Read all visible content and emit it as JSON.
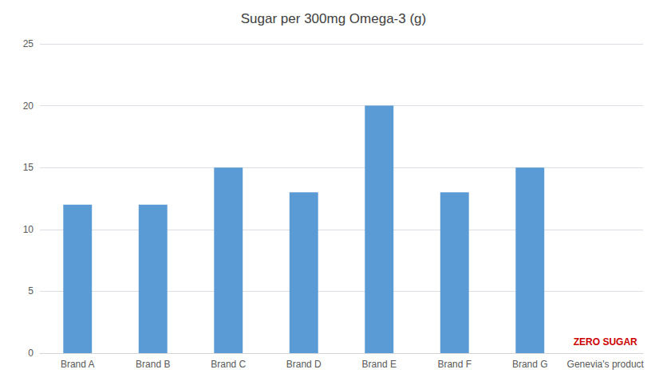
{
  "chart_data": {
    "type": "bar",
    "title": "Sugar per 300mg Omega-3 (g)",
    "categories": [
      "Brand A",
      "Brand B",
      "Brand C",
      "Brand D",
      "Brand E",
      "Brand F",
      "Brand G",
      "Genevia's product"
    ],
    "values": [
      12,
      12,
      15,
      13,
      20,
      13,
      15,
      0
    ],
    "color": "#5b9bd5",
    "ylim": [
      0,
      25
    ],
    "yticks": [
      0,
      5,
      10,
      15,
      20,
      25
    ],
    "grid": true,
    "annotations": [
      {
        "text": "ZERO SUGAR",
        "category": "Genevia's product",
        "color": "#cc0000"
      }
    ]
  }
}
